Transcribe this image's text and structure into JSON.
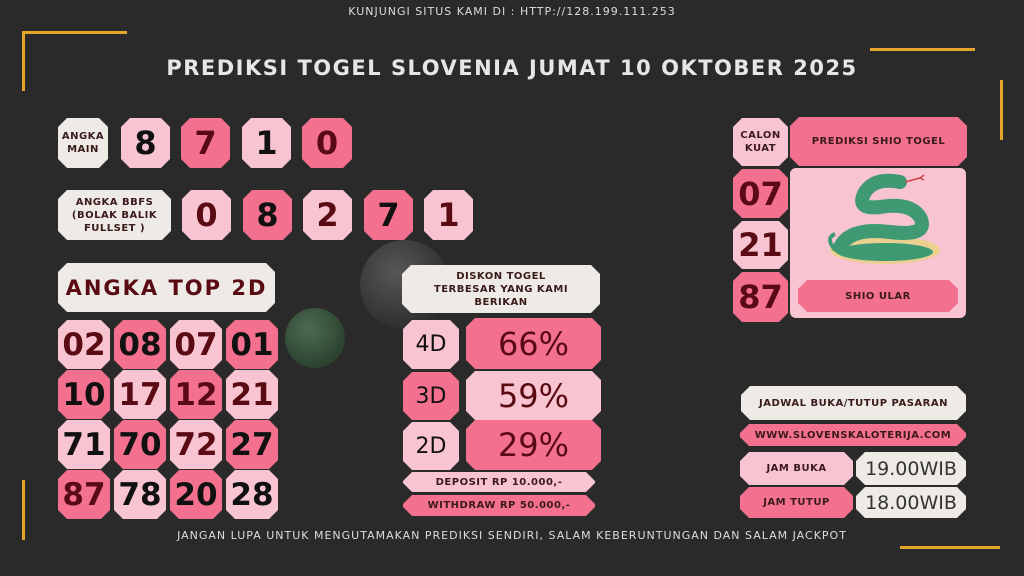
{
  "header": {
    "visit_note": "KUNJUNGI SITUS KAMI DI : HTTP://128.199.111.253",
    "title": "PREDIKSI TOGEL SLOVENIA JUMAT 10 OKTOBER 2025"
  },
  "angka_main": {
    "label": "ANGKA MAIN",
    "digits": [
      "8",
      "7",
      "1",
      "0"
    ]
  },
  "bbfs": {
    "label": "ANGKA BBFS (BOLAK BALIK FULLSET )",
    "digits": [
      "0",
      "8",
      "2",
      "7",
      "1"
    ]
  },
  "top2d": {
    "label": "ANGKA TOP 2D",
    "numbers": [
      "02",
      "08",
      "07",
      "01",
      "10",
      "17",
      "12",
      "21",
      "71",
      "70",
      "72",
      "27",
      "87",
      "78",
      "20",
      "28"
    ]
  },
  "diskon": {
    "title": "DISKON TOGEL TERBESAR YANG KAMI BERIKAN",
    "rows": [
      {
        "label": "4D",
        "value": "66%"
      },
      {
        "label": "3D",
        "value": "59%"
      },
      {
        "label": "2D",
        "value": "29%"
      }
    ],
    "deposit": "DEPOSIT RP 10.000,-",
    "withdraw": "WITHDRAW RP 50.000,-"
  },
  "shio": {
    "calon_label": "CALON KUAT",
    "title": "PREDIKSI SHIO TOGEL",
    "numbers": [
      "07",
      "21",
      "87"
    ],
    "name": "SHIO ULAR",
    "icon": "snake-icon"
  },
  "jadwal": {
    "title": "JADWAL BUKA/TUTUP PASARAN",
    "website": "WWW.SLOVENSKALOTERIJA.COM",
    "buka_label": "JAM BUKA",
    "buka_time": "19.00WIB",
    "tutup_label": "JAM TUTUP",
    "tutup_time": "18.00WIB"
  },
  "footer": "JANGAN LUPA UNTUK MENGUTAMAKAN PREDIKSI SENDIRI, SALAM KEBERUNTUNGAN DAN SALAM JACKPOT",
  "colors": {
    "background": "#2a2a2b",
    "light_pink": "#f9c4d2",
    "hot_pink": "#f3718f",
    "cream": "#eeeae6",
    "text": "#5a0a12",
    "gold": "#e4a62a"
  }
}
